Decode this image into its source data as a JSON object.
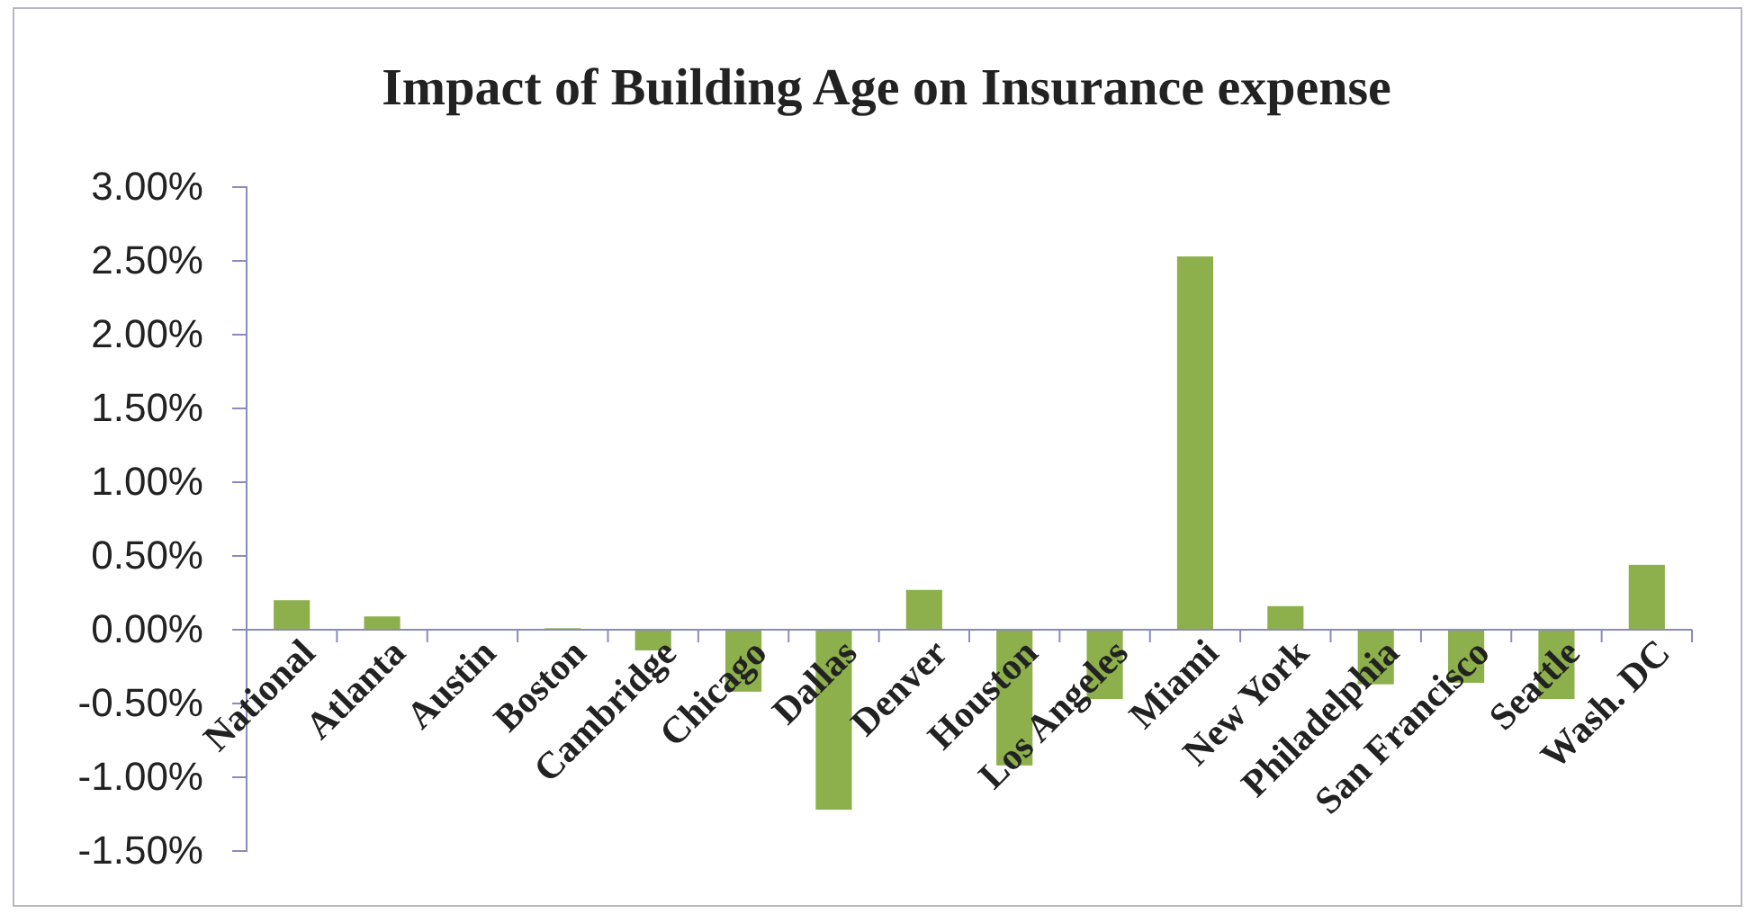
{
  "chart_data": {
    "type": "bar",
    "title": "Impact of Building Age on Insurance expense",
    "categories": [
      "National",
      "Atlanta",
      "Austin",
      "Boston",
      "Cambridge",
      "Chicago",
      "Dallas",
      "Denver",
      "Houston",
      "Los Angeles",
      "Miami",
      "New York",
      "Philadelphia",
      "San Francisco",
      "Seattle",
      "Wash. DC"
    ],
    "values": [
      0.2,
      0.09,
      0,
      0.01,
      -0.14,
      -0.42,
      -1.22,
      0.27,
      -0.92,
      -0.47,
      2.53,
      0.16,
      -0.37,
      -0.36,
      -0.47,
      0.44
    ],
    "color": "#8db04c",
    "ylim": [
      -1.5,
      3
    ],
    "yticks": [
      {
        "value": -1.5,
        "label": "-1.50%"
      },
      {
        "value": -1,
        "label": "-1.00%"
      },
      {
        "value": -0.5,
        "label": "-0.50%"
      },
      {
        "value": 0,
        "label": "0.00%"
      },
      {
        "value": 0.5,
        "label": "0.50%"
      },
      {
        "value": 1,
        "label": "1.00%"
      },
      {
        "value": 1.5,
        "label": "1.50%"
      },
      {
        "value": 2,
        "label": "2.00%"
      },
      {
        "value": 2.5,
        "label": "2.50%"
      },
      {
        "value": 3,
        "label": "3.00%"
      }
    ]
  }
}
